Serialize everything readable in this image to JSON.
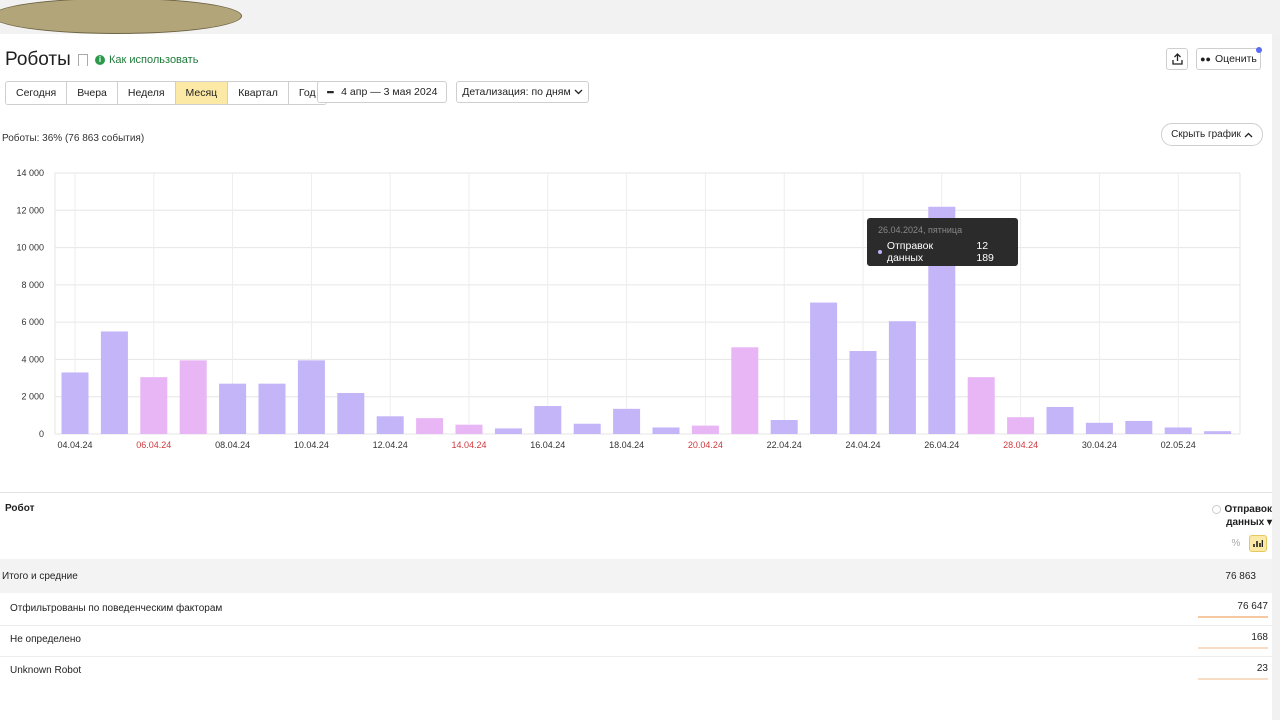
{
  "page": {
    "title": "Роботы",
    "how_to_label": "Как использовать",
    "rate_label": "Оценить"
  },
  "periods": [
    "Сегодня",
    "Вчера",
    "Неделя",
    "Месяц",
    "Квартал",
    "Год"
  ],
  "active_period": "Месяц",
  "date_range": "4 апр — 3 мая 2024",
  "detail_label": "Детализация: по дням",
  "summary": "Роботы: 36% (76 863 события)",
  "hide_chart_label": "Скрыть график",
  "tooltip": {
    "date": "26.04.2024, пятница",
    "series": "Отправок данных",
    "value": "12 189"
  },
  "chart_data": {
    "type": "bar",
    "x": [
      "04.04.24",
      "05.04.24",
      "06.04.24",
      "07.04.24",
      "08.04.24",
      "09.04.24",
      "10.04.24",
      "11.04.24",
      "12.04.24",
      "13.04.24",
      "14.04.24",
      "15.04.24",
      "16.04.24",
      "17.04.24",
      "18.04.24",
      "19.04.24",
      "20.04.24",
      "21.04.24",
      "22.04.24",
      "23.04.24",
      "24.04.24",
      "25.04.24",
      "26.04.24",
      "27.04.24",
      "28.04.24",
      "29.04.24",
      "30.04.24",
      "01.05.24",
      "02.05.24",
      "03.05.24"
    ],
    "tick_labels": [
      "04.04.24",
      "06.04.24",
      "08.04.24",
      "10.04.24",
      "12.04.24",
      "14.04.24",
      "16.04.24",
      "18.04.24",
      "20.04.24",
      "22.04.24",
      "24.04.24",
      "26.04.24",
      "28.04.24",
      "30.04.24",
      "02.05.24"
    ],
    "weekend_ticks": [
      "06.04.24",
      "14.04.24",
      "20.04.24",
      "28.04.24"
    ],
    "values": [
      3300,
      5500,
      3050,
      3950,
      2700,
      2700,
      3950,
      2200,
      950,
      850,
      500,
      300,
      1500,
      550,
      1350,
      350,
      450,
      4650,
      750,
      7050,
      4450,
      6050,
      12189,
      3050,
      900,
      1450,
      600,
      700,
      350,
      150
    ],
    "weekend": [
      false,
      false,
      true,
      true,
      false,
      false,
      false,
      false,
      false,
      true,
      true,
      false,
      false,
      false,
      false,
      false,
      true,
      true,
      false,
      false,
      false,
      false,
      false,
      true,
      true,
      false,
      false,
      false,
      false,
      false
    ],
    "y_ticks": [
      "0",
      "2 000",
      "4 000",
      "6 000",
      "8 000",
      "10 000",
      "12 000",
      "14 000"
    ],
    "ylim": [
      0,
      14000
    ],
    "grid": true,
    "colors": {
      "weekday": "#c4b4f8",
      "weekend": "#e8b6f5",
      "tick_weekend": "#d0393d"
    }
  },
  "table": {
    "col_robot": "Робот",
    "col_metric": "Отправок данных",
    "sort_marker": "▾",
    "total_label": "Итого и средние",
    "total_value": "76 863",
    "pct_label": "%",
    "rows": [
      {
        "name": "Отфильтрованы по поведенческим факторам",
        "value": "76 647",
        "share": 0.997
      },
      {
        "name": "Не определено",
        "value": "168",
        "share": 0.002
      },
      {
        "name": "Unknown Robot",
        "value": "23",
        "share": 0.0003
      }
    ]
  }
}
